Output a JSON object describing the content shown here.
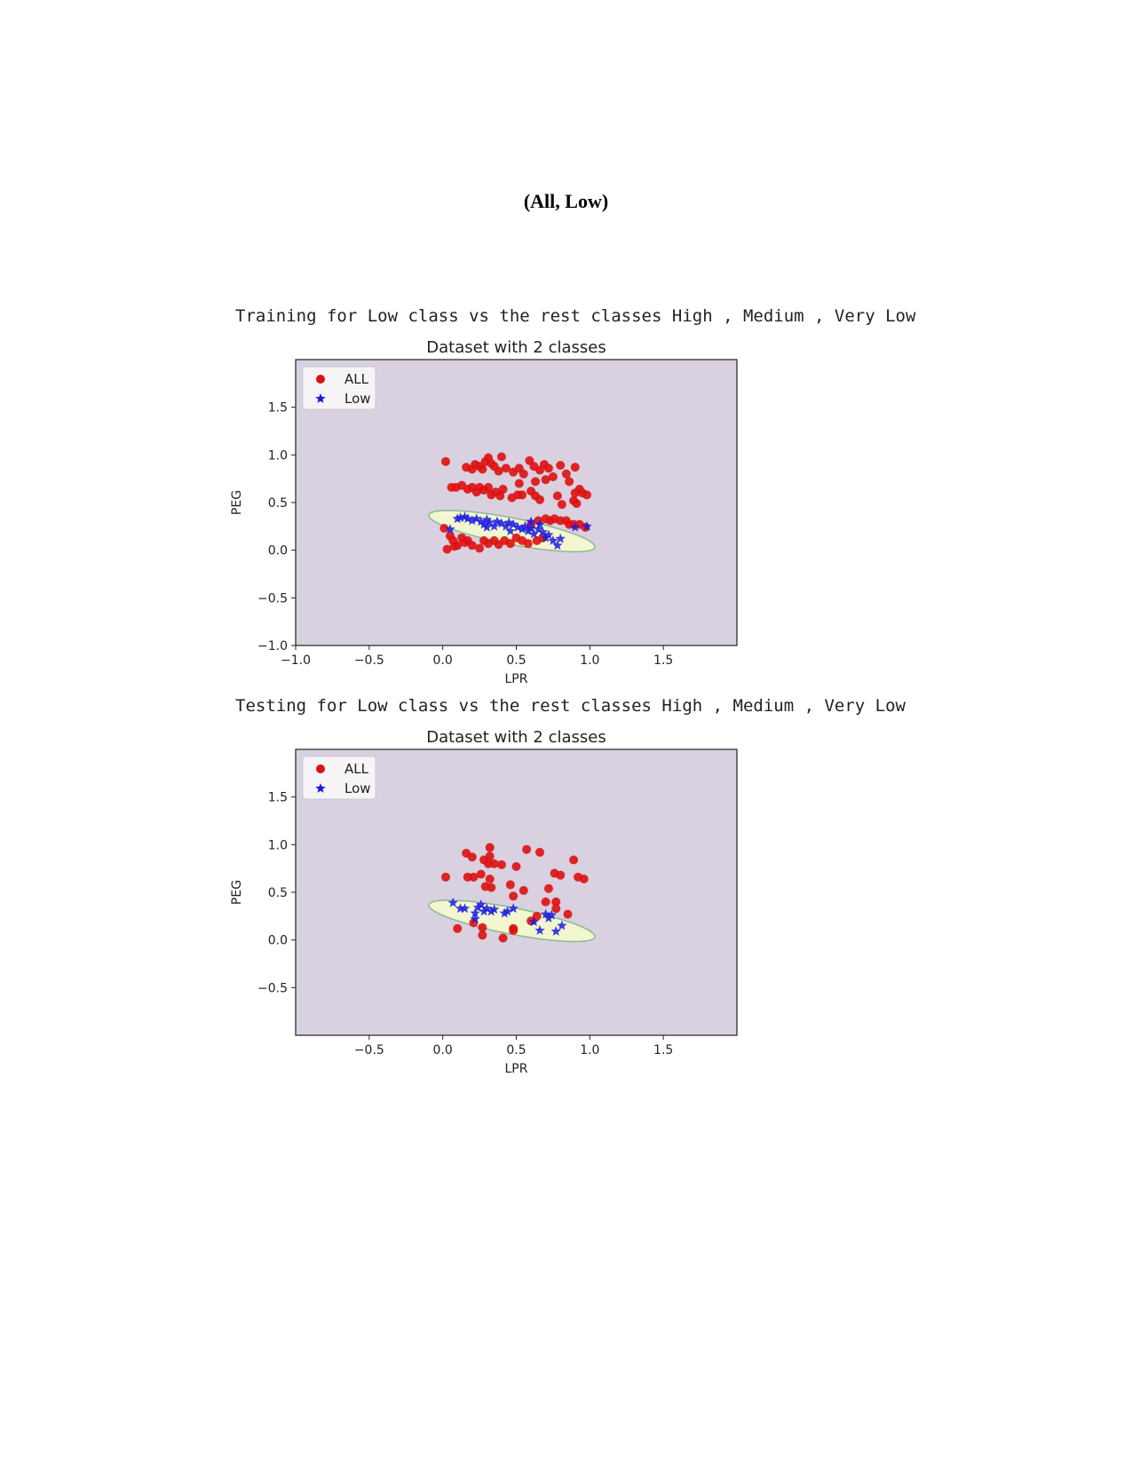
{
  "page": {
    "title": "(All, Low)"
  },
  "sections": [
    {
      "caption": "Training for Low class vs the rest classes High , Medium , Very Low"
    },
    {
      "caption": "Testing for Low class vs the rest classes High , Medium , Very Low"
    }
  ],
  "colors": {
    "background_region": "#d9d0e0",
    "decision_region": "#f2f7cf",
    "decision_edge": "#8ab89b",
    "all_marker": "#dd1111",
    "low_marker": "#1a1adf"
  },
  "chart_data": [
    {
      "type": "scatter",
      "title": "Dataset with 2 classes",
      "xlabel": "LPR",
      "ylabel": "PEG",
      "xlim": [
        -1.0,
        2.0
      ],
      "ylim": [
        -1.0,
        2.0
      ],
      "xticks": [
        -1.0,
        -0.5,
        0.0,
        0.5,
        1.0,
        1.5
      ],
      "xtick_labels": [
        "−1.0",
        "−0.5",
        "0.0",
        "0.5",
        "1.0",
        "1.5"
      ],
      "yticks": [
        -1.0,
        -0.5,
        0.0,
        0.5,
        1.0,
        1.5
      ],
      "ytick_labels": [
        "−1.0",
        "−0.5",
        "0.0",
        "0.5",
        "1.0",
        "1.5"
      ],
      "legend": {
        "placement": "upper-left",
        "entries": [
          "ALL",
          "Low"
        ]
      },
      "grid": false,
      "series": [
        {
          "name": "ALL",
          "marker": "circle",
          "points": [
            [
              0.02,
              0.93
            ],
            [
              0.16,
              0.87
            ],
            [
              0.2,
              0.85
            ],
            [
              0.22,
              0.9
            ],
            [
              0.25,
              0.88
            ],
            [
              0.27,
              0.85
            ],
            [
              0.29,
              0.93
            ],
            [
              0.31,
              0.97
            ],
            [
              0.33,
              0.91
            ],
            [
              0.35,
              0.88
            ],
            [
              0.38,
              0.83
            ],
            [
              0.4,
              0.98
            ],
            [
              0.43,
              0.86
            ],
            [
              0.48,
              0.82
            ],
            [
              0.52,
              0.86
            ],
            [
              0.55,
              0.8
            ],
            [
              0.59,
              0.94
            ],
            [
              0.62,
              0.88
            ],
            [
              0.66,
              0.84
            ],
            [
              0.69,
              0.9
            ],
            [
              0.72,
              0.86
            ],
            [
              0.75,
              0.77
            ],
            [
              0.8,
              0.89
            ],
            [
              0.84,
              0.8
            ],
            [
              0.9,
              0.87
            ],
            [
              0.86,
              0.72
            ],
            [
              0.7,
              0.74
            ],
            [
              0.63,
              0.72
            ],
            [
              0.52,
              0.7
            ],
            [
              0.06,
              0.66
            ],
            [
              0.09,
              0.66
            ],
            [
              0.13,
              0.68
            ],
            [
              0.17,
              0.64
            ],
            [
              0.2,
              0.66
            ],
            [
              0.23,
              0.61
            ],
            [
              0.25,
              0.66
            ],
            [
              0.28,
              0.63
            ],
            [
              0.31,
              0.66
            ],
            [
              0.33,
              0.58
            ],
            [
              0.36,
              0.61
            ],
            [
              0.39,
              0.57
            ],
            [
              0.41,
              0.64
            ],
            [
              0.47,
              0.55
            ],
            [
              0.51,
              0.58
            ],
            [
              0.54,
              0.58
            ],
            [
              0.6,
              0.62
            ],
            [
              0.63,
              0.57
            ],
            [
              0.66,
              0.53
            ],
            [
              0.78,
              0.57
            ],
            [
              0.81,
              0.48
            ],
            [
              0.89,
              0.52
            ],
            [
              0.9,
              0.6
            ],
            [
              0.93,
              0.64
            ],
            [
              0.95,
              0.6
            ],
            [
              0.98,
              0.58
            ],
            [
              0.91,
              0.49
            ],
            [
              0.7,
              0.33
            ],
            [
              0.73,
              0.31
            ],
            [
              0.76,
              0.33
            ],
            [
              0.8,
              0.31
            ],
            [
              0.84,
              0.31
            ],
            [
              0.86,
              0.27
            ],
            [
              0.89,
              0.27
            ],
            [
              0.93,
              0.27
            ],
            [
              0.97,
              0.24
            ],
            [
              0.65,
              0.31
            ],
            [
              0.6,
              0.27
            ],
            [
              0.01,
              0.23
            ],
            [
              0.05,
              0.15
            ],
            [
              0.07,
              0.1
            ],
            [
              0.1,
              0.05
            ],
            [
              0.13,
              0.13
            ],
            [
              0.15,
              0.08
            ],
            [
              0.17,
              0.1
            ],
            [
              0.2,
              0.05
            ],
            [
              0.25,
              0.02
            ],
            [
              0.28,
              0.1
            ],
            [
              0.31,
              0.07
            ],
            [
              0.35,
              0.1
            ],
            [
              0.38,
              0.06
            ],
            [
              0.42,
              0.1
            ],
            [
              0.46,
              0.07
            ],
            [
              0.5,
              0.13
            ],
            [
              0.54,
              0.1
            ],
            [
              0.58,
              0.07
            ],
            [
              0.64,
              0.1
            ],
            [
              0.68,
              0.13
            ],
            [
              0.03,
              0.01
            ],
            [
              0.08,
              0.04
            ]
          ]
        },
        {
          "name": "Low",
          "marker": "star",
          "points": [
            [
              0.1,
              0.33
            ],
            [
              0.12,
              0.34
            ],
            [
              0.15,
              0.35
            ],
            [
              0.17,
              0.33
            ],
            [
              0.2,
              0.31
            ],
            [
              0.23,
              0.33
            ],
            [
              0.26,
              0.3
            ],
            [
              0.28,
              0.27
            ],
            [
              0.3,
              0.32
            ],
            [
              0.32,
              0.29
            ],
            [
              0.35,
              0.25
            ],
            [
              0.37,
              0.3
            ],
            [
              0.4,
              0.28
            ],
            [
              0.43,
              0.25
            ],
            [
              0.45,
              0.29
            ],
            [
              0.48,
              0.27
            ],
            [
              0.51,
              0.24
            ],
            [
              0.54,
              0.22
            ],
            [
              0.56,
              0.25
            ],
            [
              0.58,
              0.2
            ],
            [
              0.6,
              0.23
            ],
            [
              0.62,
              0.17
            ],
            [
              0.65,
              0.22
            ],
            [
              0.68,
              0.19
            ],
            [
              0.7,
              0.13
            ],
            [
              0.72,
              0.16
            ],
            [
              0.75,
              0.1
            ],
            [
              0.78,
              0.05
            ],
            [
              0.8,
              0.12
            ],
            [
              0.9,
              0.24
            ],
            [
              0.98,
              0.25
            ],
            [
              0.05,
              0.22
            ],
            [
              0.3,
              0.24
            ],
            [
              0.46,
              0.2
            ],
            [
              0.6,
              0.3
            ],
            [
              0.66,
              0.27
            ]
          ]
        }
      ]
    },
    {
      "type": "scatter",
      "title": "Dataset with 2 classes",
      "xlabel": "LPR",
      "ylabel": "PEG",
      "xlim": [
        -1.0,
        2.0
      ],
      "ylim": [
        -1.0,
        2.0
      ],
      "xticks": [
        -0.5,
        0.0,
        0.5,
        1.0,
        1.5
      ],
      "xtick_labels": [
        "−0.5",
        "0.0",
        "0.5",
        "1.0",
        "1.5"
      ],
      "yticks": [
        -0.5,
        0.0,
        0.5,
        1.0,
        1.5
      ],
      "ytick_labels": [
        "−0.5",
        "0.0",
        "0.5",
        "1.0",
        "1.5"
      ],
      "legend": {
        "placement": "upper-left",
        "entries": [
          "ALL",
          "Low"
        ]
      },
      "grid": false,
      "series": [
        {
          "name": "ALL",
          "marker": "circle",
          "points": [
            [
              0.32,
              0.97
            ],
            [
              0.57,
              0.95
            ],
            [
              0.66,
              0.92
            ],
            [
              0.32,
              0.88
            ],
            [
              0.16,
              0.91
            ],
            [
              0.2,
              0.87
            ],
            [
              0.28,
              0.84
            ],
            [
              0.31,
              0.8
            ],
            [
              0.35,
              0.8
            ],
            [
              0.4,
              0.79
            ],
            [
              0.5,
              0.77
            ],
            [
              0.89,
              0.84
            ],
            [
              0.02,
              0.66
            ],
            [
              0.17,
              0.66
            ],
            [
              0.21,
              0.66
            ],
            [
              0.26,
              0.69
            ],
            [
              0.32,
              0.64
            ],
            [
              0.46,
              0.58
            ],
            [
              0.55,
              0.52
            ],
            [
              0.29,
              0.56
            ],
            [
              0.33,
              0.55
            ],
            [
              0.48,
              0.46
            ],
            [
              0.76,
              0.7
            ],
            [
              0.8,
              0.68
            ],
            [
              0.92,
              0.66
            ],
            [
              0.96,
              0.64
            ],
            [
              0.72,
              0.54
            ],
            [
              0.7,
              0.4
            ],
            [
              0.77,
              0.4
            ],
            [
              0.77,
              0.33
            ],
            [
              0.85,
              0.27
            ],
            [
              0.1,
              0.12
            ],
            [
              0.21,
              0.18
            ],
            [
              0.27,
              0.13
            ],
            [
              0.27,
              0.05
            ],
            [
              0.41,
              0.02
            ],
            [
              0.48,
              0.12
            ],
            [
              0.48,
              0.1
            ],
            [
              0.6,
              0.2
            ],
            [
              0.64,
              0.25
            ]
          ]
        },
        {
          "name": "Low",
          "marker": "star",
          "points": [
            [
              0.07,
              0.39
            ],
            [
              0.12,
              0.33
            ],
            [
              0.15,
              0.33
            ],
            [
              0.22,
              0.28
            ],
            [
              0.24,
              0.34
            ],
            [
              0.26,
              0.37
            ],
            [
              0.28,
              0.3
            ],
            [
              0.3,
              0.33
            ],
            [
              0.33,
              0.3
            ],
            [
              0.35,
              0.32
            ],
            [
              0.42,
              0.28
            ],
            [
              0.48,
              0.33
            ],
            [
              0.62,
              0.19
            ],
            [
              0.66,
              0.1
            ],
            [
              0.7,
              0.27
            ],
            [
              0.72,
              0.23
            ],
            [
              0.74,
              0.26
            ],
            [
              0.77,
              0.09
            ],
            [
              0.81,
              0.15
            ],
            [
              0.44,
              0.3
            ],
            [
              0.22,
              0.22
            ]
          ]
        }
      ]
    }
  ]
}
